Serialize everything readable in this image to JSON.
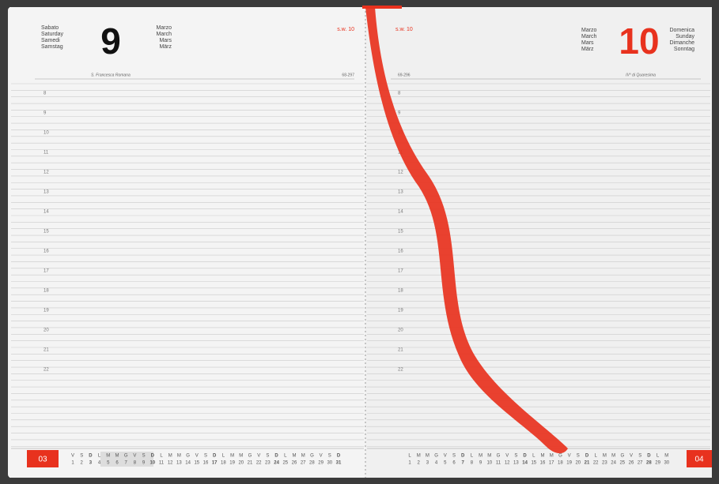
{
  "left_page": {
    "weekday": [
      "Sabato",
      "Saturday",
      "Samedi",
      "Samstag"
    ],
    "day": "9",
    "month": [
      "Marzo",
      "March",
      "Mars",
      "März"
    ],
    "week": "s.w. 10",
    "saint": "S. Francesca Romana",
    "day_count": "68-297",
    "hours": [
      "8",
      "9",
      "10",
      "11",
      "12",
      "13",
      "14",
      "15",
      "16",
      "17",
      "18",
      "19",
      "20",
      "21",
      "22"
    ],
    "month_number": "03",
    "calendar": {
      "weekdays": [
        "V",
        "S",
        "D",
        "L",
        "M",
        "M",
        "G",
        "V",
        "S",
        "D",
        "L",
        "M",
        "M",
        "G",
        "V",
        "S",
        "D",
        "L",
        "M",
        "M",
        "G",
        "V",
        "S",
        "D",
        "L",
        "M",
        "M",
        "G",
        "V",
        "S",
        "D"
      ],
      "days": [
        "1",
        "2",
        "3",
        "4",
        "5",
        "6",
        "7",
        "8",
        "9",
        "10",
        "11",
        "12",
        "13",
        "14",
        "15",
        "16",
        "17",
        "18",
        "19",
        "20",
        "21",
        "22",
        "23",
        "24",
        "25",
        "26",
        "27",
        "28",
        "29",
        "30",
        "31"
      ]
    }
  },
  "right_page": {
    "weekday": [
      "Domenica",
      "Sunday",
      "Dimanche",
      "Sonntag"
    ],
    "day": "10",
    "month": [
      "Marzo",
      "March",
      "Mars",
      "März"
    ],
    "week": "s.w. 10",
    "feast": "IV° di Quaresima",
    "day_count": "69-296",
    "hours": [
      "8",
      "9",
      "10",
      "11",
      "12",
      "13",
      "14",
      "15",
      "16",
      "17",
      "18",
      "19",
      "20",
      "21",
      "22"
    ],
    "month_number": "04",
    "calendar": {
      "weekdays": [
        "L",
        "M",
        "M",
        "G",
        "V",
        "S",
        "D",
        "L",
        "M",
        "M",
        "G",
        "V",
        "S",
        "D",
        "L",
        "M",
        "M",
        "G",
        "V",
        "S",
        "D",
        "L",
        "M",
        "M",
        "G",
        "V",
        "S",
        "D",
        "L",
        "M"
      ],
      "days": [
        "1",
        "2",
        "3",
        "4",
        "5",
        "6",
        "7",
        "8",
        "9",
        "10",
        "11",
        "12",
        "13",
        "14",
        "15",
        "16",
        "17",
        "18",
        "19",
        "20",
        "21",
        "22",
        "23",
        "24",
        "25",
        "26",
        "27",
        "28",
        "29",
        "30"
      ]
    }
  }
}
